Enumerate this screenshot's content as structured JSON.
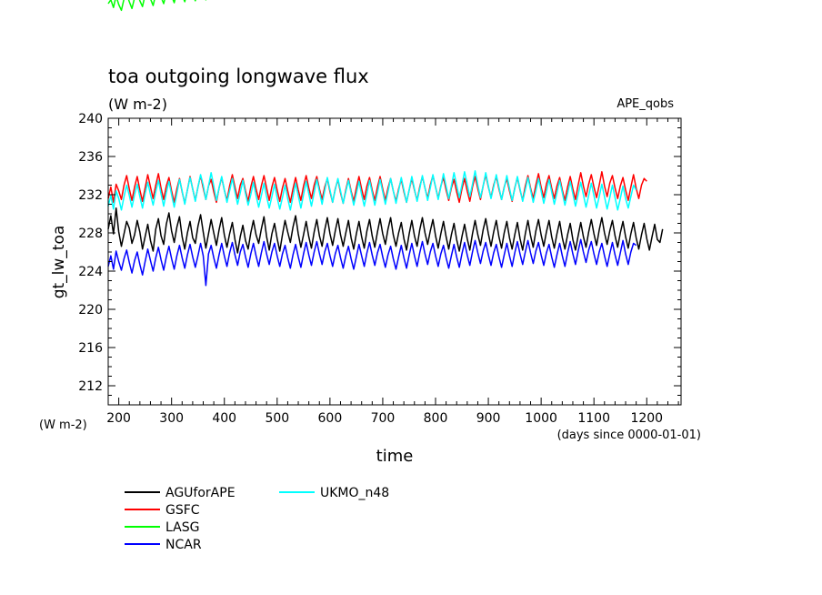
{
  "chart_data": {
    "type": "line",
    "title": "toa outgoing longwave flux",
    "units_label": "(W m-2)",
    "experiment_label": "APE_qobs",
    "ylabel": "gt_lw_toa",
    "xlabel": "time",
    "x_units_label": "(days since 0000-01-01)",
    "y_units_label": "(W m-2)",
    "xlim": [
      180,
      1265
    ],
    "ylim": [
      210,
      240
    ],
    "xticks": [
      200,
      300,
      400,
      500,
      600,
      700,
      800,
      900,
      1000,
      1100,
      1200
    ],
    "yticks": [
      212,
      216,
      220,
      224,
      228,
      232,
      236,
      240
    ],
    "grid": false,
    "legend_position": "bottom-left, below plot",
    "series_sampling": "values sampled every 5 days from x=180 to x=1265",
    "series": [
      {
        "name": "AGUforAPE",
        "color": "#000000",
        "values": [
          228.4,
          229.8,
          227.9,
          230.6,
          228.1,
          226.6,
          227.9,
          229.2,
          228.5,
          226.9,
          227.8,
          229.3,
          228.1,
          226.3,
          227.6,
          228.9,
          227.2,
          226.1,
          228.4,
          229.5,
          227.7,
          226.8,
          228.9,
          230.1,
          228.2,
          227.0,
          228.6,
          229.7,
          227.6,
          226.3,
          228.0,
          229.2,
          227.5,
          226.9,
          228.7,
          229.9,
          228.1,
          226.4,
          227.9,
          229.4,
          228.0,
          226.7,
          228.3,
          229.6,
          227.8,
          226.5,
          227.9,
          229.1,
          227.3,
          225.9,
          227.6,
          228.8,
          227.2,
          226.3,
          228.0,
          229.3,
          227.8,
          226.9,
          228.4,
          229.7,
          227.6,
          226.2,
          227.9,
          229.0,
          227.4,
          226.1,
          227.8,
          229.3,
          228.1,
          227.0,
          228.6,
          229.8,
          227.9,
          226.5,
          227.8,
          229.2,
          227.6,
          226.4,
          228.1,
          229.4,
          227.7,
          226.6,
          228.3,
          229.6,
          227.9,
          226.7,
          228.2,
          229.5,
          227.8,
          226.6,
          228.0,
          229.3,
          227.5,
          226.3,
          227.9,
          229.2,
          227.6,
          226.4,
          228.2,
          229.4,
          227.7,
          226.5,
          228.1,
          229.5,
          227.9,
          226.8,
          228.4,
          229.6,
          227.8,
          226.6,
          228.0,
          229.1,
          227.4,
          226.2,
          227.9,
          229.3,
          227.7,
          226.6,
          228.3,
          229.6,
          228.0,
          226.8,
          228.2,
          229.4,
          227.7,
          226.4,
          227.9,
          229.2,
          227.6,
          226.3,
          227.8,
          229.0,
          227.3,
          226.1,
          227.6,
          228.9,
          227.4,
          226.2,
          227.9,
          229.3,
          227.8,
          226.7,
          228.3,
          229.5,
          227.9,
          226.6,
          228.1,
          229.3,
          227.6,
          226.4,
          228.0,
          229.2,
          227.5,
          226.3,
          227.8,
          229.1,
          227.4,
          226.2,
          227.9,
          229.3,
          227.7,
          226.5,
          228.2,
          229.4,
          227.8,
          226.6,
          228.1,
          229.3,
          227.6,
          226.4,
          227.9,
          229.2,
          227.5,
          226.3,
          227.8,
          229.0,
          227.3,
          226.2,
          227.7,
          229.1,
          227.6,
          226.5,
          228.1,
          229.4,
          227.9,
          226.7,
          228.3,
          229.6,
          228.0,
          226.8,
          228.2,
          229.3,
          227.7,
          226.5,
          228.0,
          229.2,
          227.6,
          226.4,
          227.9,
          229.1,
          227.5,
          226.3,
          227.8,
          229.0,
          227.4,
          226.2,
          227.6,
          228.9,
          227.3,
          227.0,
          228.4
        ]
      },
      {
        "name": "GSFC",
        "color": "#ff0000",
        "values": [
          231.6,
          232.8,
          231.2,
          233.1,
          232.4,
          231.5,
          233.0,
          234.0,
          232.6,
          231.4,
          232.8,
          233.9,
          232.5,
          231.3,
          232.7,
          234.1,
          232.8,
          231.6,
          233.0,
          234.2,
          232.7,
          231.5,
          232.9,
          233.8,
          232.4,
          231.2,
          232.6,
          233.7,
          232.3,
          231.1,
          232.5,
          233.9,
          232.6,
          231.4,
          232.8,
          234.0,
          232.7,
          231.5,
          232.9,
          233.6,
          232.3,
          231.2,
          232.7,
          233.8,
          232.5,
          231.4,
          232.9,
          234.1,
          232.8,
          231.6,
          233.0,
          233.7,
          232.4,
          231.3,
          232.8,
          233.9,
          232.6,
          231.5,
          232.9,
          234.0,
          232.7,
          231.4,
          232.8,
          233.8,
          232.5,
          231.3,
          232.7,
          233.7,
          232.4,
          231.2,
          232.6,
          233.8,
          232.5,
          231.4,
          232.9,
          234.0,
          232.7,
          231.6,
          233.0,
          233.9,
          232.6,
          231.5,
          232.8,
          233.7,
          232.3,
          231.2,
          232.6,
          233.6,
          232.2,
          231.1,
          232.5,
          233.7,
          232.4,
          231.3,
          232.7,
          233.9,
          232.6,
          231.5,
          232.9,
          233.8,
          232.5,
          231.4,
          232.8,
          233.9,
          232.6,
          231.4,
          232.7,
          233.7,
          232.4,
          231.3,
          232.6,
          233.6,
          232.3,
          231.2,
          232.5,
          233.7,
          232.5,
          231.4,
          232.8,
          233.9,
          232.7,
          231.6,
          233.0,
          234.0,
          232.8,
          231.6,
          232.9,
          233.8,
          232.5,
          231.4,
          232.7,
          233.6,
          232.3,
          231.2,
          232.6,
          233.7,
          232.4,
          231.3,
          232.8,
          233.9,
          232.6,
          231.5,
          232.9,
          234.1,
          232.8,
          231.7,
          233.0,
          233.9,
          232.6,
          231.5,
          232.8,
          233.7,
          232.4,
          231.3,
          232.7,
          233.8,
          232.5,
          231.4,
          232.9,
          234.0,
          232.7,
          231.6,
          233.0,
          234.2,
          232.8,
          231.7,
          233.1,
          234.0,
          232.7,
          231.6,
          232.9,
          233.8,
          232.5,
          231.4,
          232.8,
          233.9,
          232.6,
          231.5,
          233.0,
          234.3,
          232.9,
          231.8,
          233.1,
          234.1,
          232.8,
          231.7,
          233.0,
          234.4,
          232.9,
          231.8,
          233.2,
          234.0,
          232.7,
          231.6,
          232.9,
          233.8,
          232.5,
          231.4,
          232.8,
          234.1,
          232.7,
          231.6,
          233.0,
          233.7,
          233.4
        ]
      },
      {
        "name": "LASG",
        "color": "#00ff00",
        "values": [
          252.0,
          252.4,
          251.6,
          252.8,
          251.9,
          251.3,
          252.5,
          253.0,
          252.2,
          251.5,
          252.6,
          253.1,
          252.3,
          251.7,
          252.9,
          253.4,
          252.5,
          251.8,
          253.0,
          253.6,
          252.7,
          252.0,
          253.1,
          253.7,
          252.8,
          252.1,
          253.2,
          253.8,
          252.9,
          252.2,
          253.3,
          253.9,
          253.0,
          252.3,
          253.4,
          254.0,
          253.1,
          252.4,
          253.5,
          254.1,
          253.2,
          252.5,
          253.6,
          254.2,
          253.3,
          252.6,
          253.7,
          254.3,
          253.4,
          252.7,
          253.8,
          254.4,
          253.5,
          252.8,
          253.9,
          254.5,
          253.6,
          252.9,
          254.0,
          254.6,
          253.7,
          253.0,
          254.1,
          254.7,
          253.8,
          253.1,
          254.2,
          254.8,
          253.9,
          253.2,
          254.3,
          254.9,
          254.0,
          253.3,
          254.4,
          255.0,
          254.1,
          253.4,
          254.5,
          255.1,
          254.2,
          253.5,
          254.6,
          255.2,
          254.3,
          253.6,
          254.7,
          255.3,
          254.4,
          253.7,
          254.8,
          255.4,
          254.5,
          253.8,
          254.9,
          255.5,
          254.6,
          253.9,
          255.0,
          255.6,
          254.7,
          254.0,
          255.1,
          255.7,
          254.8,
          254.1,
          255.2,
          255.8,
          254.9,
          254.2,
          255.3,
          255.9,
          255.0,
          254.3,
          255.4,
          256.0,
          255.1,
          254.4,
          255.5,
          256.1,
          255.2,
          254.5,
          255.6,
          256.2,
          255.3,
          254.6,
          255.7,
          256.3,
          255.4,
          254.7,
          255.8,
          256.4,
          255.5,
          254.8,
          255.9,
          256.5,
          255.6,
          254.9,
          256.0,
          256.6,
          255.7,
          255.0,
          256.1,
          256.7,
          255.8,
          255.1,
          256.2,
          256.8,
          255.9,
          255.2,
          256.3,
          256.9,
          256.0,
          255.3,
          256.4,
          257.0,
          256.1,
          255.4,
          256.5,
          257.1,
          256.2,
          255.5,
          256.6,
          257.2,
          256.3,
          255.6,
          256.7,
          257.3,
          256.4,
          255.7,
          256.8,
          257.4,
          256.5,
          255.8,
          256.9,
          257.5,
          256.6,
          255.9,
          257.0,
          257.6,
          256.7,
          256.0,
          257.1,
          257.7,
          256.8,
          256.1,
          257.2,
          257.8,
          256.9,
          256.2,
          257.3,
          257.9,
          257.0,
          256.3,
          257.4,
          258.0,
          257.1,
          256.4,
          257.5,
          258.1,
          257.2,
          256.5,
          257.6,
          258.2,
          257.3,
          256.6,
          257.7,
          258.3,
          257.4
        ]
      },
      {
        "name": "NCAR",
        "color": "#0000ff",
        "values": [
          224.5,
          225.6,
          224.2,
          226.1,
          225.0,
          224.1,
          225.3,
          226.2,
          224.9,
          223.8,
          225.1,
          226.0,
          224.7,
          223.6,
          225.0,
          226.3,
          225.1,
          224.0,
          225.4,
          226.5,
          225.2,
          224.1,
          225.5,
          226.6,
          225.3,
          224.2,
          225.6,
          226.7,
          225.4,
          224.3,
          225.7,
          226.8,
          225.5,
          224.4,
          225.6,
          226.9,
          225.6,
          222.5,
          225.8,
          226.7,
          225.4,
          224.3,
          225.7,
          226.9,
          225.6,
          224.5,
          225.9,
          227.0,
          225.7,
          224.6,
          226.0,
          226.8,
          225.5,
          224.4,
          225.8,
          226.9,
          225.6,
          224.5,
          225.9,
          227.1,
          225.8,
          224.7,
          226.0,
          226.9,
          225.6,
          224.5,
          225.8,
          226.7,
          225.4,
          224.3,
          225.7,
          226.8,
          225.5,
          224.4,
          225.8,
          227.0,
          225.7,
          224.6,
          226.0,
          227.1,
          225.8,
          224.7,
          226.0,
          226.9,
          225.6,
          224.5,
          225.8,
          226.7,
          225.4,
          224.3,
          225.6,
          226.6,
          225.3,
          224.2,
          225.5,
          226.8,
          225.6,
          224.5,
          225.9,
          227.0,
          225.7,
          224.6,
          225.9,
          226.8,
          225.5,
          224.4,
          225.7,
          226.6,
          225.3,
          224.2,
          225.5,
          226.7,
          225.4,
          224.3,
          225.7,
          226.9,
          225.6,
          224.5,
          225.9,
          227.1,
          225.8,
          224.7,
          226.0,
          226.9,
          225.6,
          224.5,
          225.8,
          226.7,
          225.4,
          224.3,
          225.6,
          226.8,
          225.5,
          224.4,
          225.8,
          227.0,
          225.7,
          224.6,
          226.0,
          227.2,
          225.9,
          224.8,
          226.1,
          227.0,
          225.7,
          224.6,
          225.9,
          226.8,
          225.5,
          224.4,
          225.7,
          226.9,
          225.6,
          224.5,
          225.9,
          227.1,
          225.8,
          224.7,
          226.0,
          227.2,
          225.9,
          224.8,
          226.1,
          227.0,
          225.7,
          224.6,
          225.9,
          226.8,
          225.5,
          224.4,
          225.7,
          226.9,
          225.6,
          224.5,
          225.9,
          227.1,
          225.8,
          224.7,
          226.1,
          227.3,
          226.0,
          224.9,
          226.2,
          227.1,
          225.8,
          224.7,
          226.0,
          226.9,
          225.6,
          224.5,
          225.8,
          227.0,
          225.7,
          224.6,
          225.9,
          227.2,
          225.8,
          224.7,
          226.0,
          226.9,
          226.7
        ]
      },
      {
        "name": "UKMO_n48",
        "color": "#00ffff",
        "values": [
          230.8,
          231.9,
          230.5,
          232.4,
          231.6,
          230.4,
          231.8,
          233.0,
          231.9,
          230.7,
          232.0,
          233.1,
          231.8,
          230.6,
          232.1,
          233.3,
          232.0,
          230.9,
          232.3,
          233.5,
          232.1,
          230.8,
          232.2,
          233.4,
          232.0,
          230.7,
          232.1,
          233.6,
          232.4,
          231.0,
          232.5,
          233.8,
          232.6,
          231.3,
          232.8,
          234.1,
          233.0,
          231.5,
          232.9,
          234.3,
          232.9,
          231.4,
          232.7,
          233.9,
          232.5,
          231.2,
          232.4,
          233.7,
          232.3,
          231.0,
          232.2,
          233.5,
          232.1,
          230.9,
          232.0,
          233.3,
          231.9,
          230.7,
          231.9,
          233.2,
          231.8,
          230.6,
          231.8,
          233.1,
          231.7,
          230.5,
          231.7,
          233.0,
          231.6,
          230.4,
          231.8,
          233.2,
          231.9,
          230.6,
          232.0,
          233.4,
          232.1,
          230.8,
          232.2,
          233.6,
          232.3,
          231.0,
          232.4,
          233.8,
          232.5,
          231.2,
          232.5,
          233.7,
          232.4,
          231.1,
          232.3,
          233.5,
          232.2,
          230.9,
          232.1,
          233.4,
          232.0,
          230.8,
          232.1,
          233.5,
          232.2,
          230.9,
          232.2,
          233.6,
          232.3,
          231.0,
          232.3,
          233.7,
          232.4,
          231.1,
          232.4,
          233.8,
          232.5,
          231.2,
          232.5,
          233.9,
          232.6,
          231.3,
          232.6,
          234.0,
          232.7,
          231.4,
          232.7,
          234.1,
          232.8,
          231.5,
          232.8,
          234.2,
          232.9,
          231.6,
          232.9,
          234.3,
          233.0,
          231.7,
          233.0,
          234.4,
          233.1,
          231.8,
          233.1,
          234.5,
          233.0,
          231.7,
          232.9,
          234.3,
          232.9,
          231.6,
          232.8,
          234.1,
          232.8,
          231.5,
          232.7,
          234.0,
          232.7,
          231.4,
          232.6,
          233.9,
          232.6,
          231.3,
          232.5,
          233.8,
          232.5,
          231.2,
          232.4,
          233.7,
          232.4,
          231.1,
          232.3,
          233.6,
          232.3,
          231.0,
          232.2,
          233.5,
          232.2,
          230.9,
          232.1,
          233.4,
          232.1,
          230.8,
          232.0,
          233.3,
          232.0,
          230.7,
          231.9,
          233.2,
          231.9,
          230.6,
          231.8,
          233.1,
          231.8,
          230.5,
          231.7,
          233.0,
          231.7,
          230.4,
          231.6,
          232.9,
          231.6,
          230.6,
          231.8,
          233.0,
          232.5
        ]
      }
    ]
  }
}
